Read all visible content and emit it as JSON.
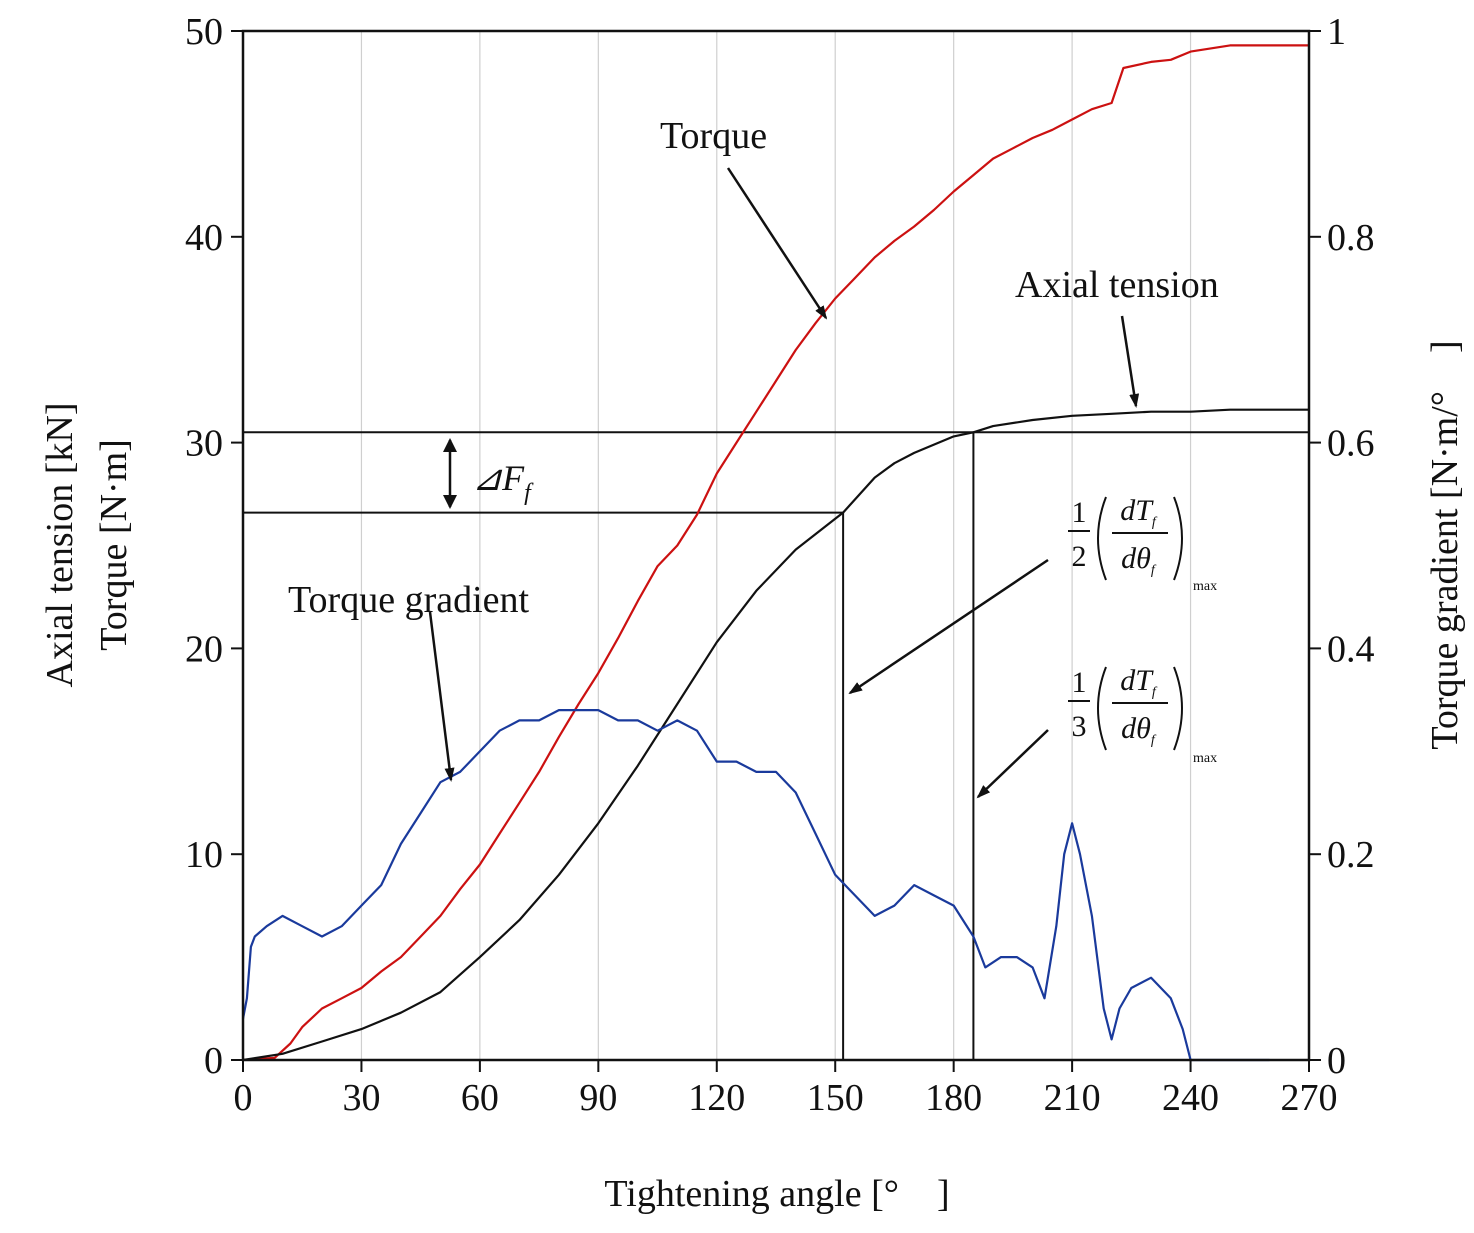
{
  "chart_data": {
    "type": "line",
    "xlabel": "Tightening angle [°　]",
    "ylabel_left_line1": "Axial tension [kN]",
    "ylabel_left_line2": "Torque [N·m]",
    "ylabel_right": "Torque gradient [N·m/°　]",
    "xlim": [
      0,
      270
    ],
    "ylim_left": [
      0,
      50
    ],
    "ylim_right": [
      0,
      1
    ],
    "x_ticks": [
      0,
      30,
      60,
      90,
      120,
      150,
      180,
      210,
      240,
      270
    ],
    "y_ticks_left": [
      0,
      10,
      20,
      30,
      40,
      50
    ],
    "y_ticks_right": [
      "0",
      "0.2",
      "0.4",
      "0.6",
      "0.8",
      "1"
    ],
    "grid": "vertical",
    "series": [
      {
        "name": "Torque",
        "axis": "left",
        "color": "#cc1111",
        "x": [
          0,
          8,
          12,
          15,
          20,
          25,
          30,
          35,
          40,
          45,
          50,
          55,
          60,
          65,
          70,
          75,
          80,
          85,
          90,
          95,
          100,
          105,
          110,
          115,
          120,
          125,
          130,
          135,
          140,
          145,
          150,
          155,
          160,
          165,
          170,
          175,
          180,
          185,
          190,
          195,
          200,
          205,
          210,
          215,
          220,
          223,
          230,
          235,
          240,
          250,
          270
        ],
        "y": [
          0,
          0.1,
          0.8,
          1.6,
          2.5,
          3.0,
          3.5,
          4.3,
          5.0,
          6.0,
          7.0,
          8.3,
          9.5,
          11.0,
          12.5,
          14.0,
          15.7,
          17.3,
          18.8,
          20.5,
          22.3,
          24.0,
          25.0,
          26.5,
          28.5,
          30.0,
          31.5,
          33.0,
          34.5,
          35.8,
          37.0,
          38.0,
          39.0,
          39.8,
          40.5,
          41.3,
          42.2,
          43.0,
          43.8,
          44.3,
          44.8,
          45.2,
          45.7,
          46.2,
          46.5,
          48.2,
          48.5,
          48.6,
          49.0,
          49.3,
          49.3
        ]
      },
      {
        "name": "Axial tension",
        "axis": "left",
        "color": "#111111",
        "x": [
          0,
          10,
          20,
          30,
          40,
          50,
          60,
          70,
          80,
          90,
          100,
          110,
          120,
          130,
          140,
          150,
          152,
          160,
          165,
          170,
          180,
          185,
          190,
          200,
          210,
          220,
          230,
          240,
          250,
          260,
          270
        ],
        "y": [
          0,
          0.3,
          0.9,
          1.5,
          2.3,
          3.3,
          5.0,
          6.8,
          9.0,
          11.5,
          14.3,
          17.3,
          20.3,
          22.8,
          24.8,
          26.3,
          26.6,
          28.3,
          29.0,
          29.5,
          30.3,
          30.5,
          30.8,
          31.1,
          31.3,
          31.4,
          31.5,
          31.5,
          31.6,
          31.6,
          31.6
        ]
      },
      {
        "name": "Torque gradient",
        "axis": "right",
        "color": "#1a3a9c",
        "x": [
          0,
          1,
          2,
          3,
          6,
          10,
          15,
          20,
          25,
          30,
          35,
          40,
          45,
          50,
          55,
          60,
          65,
          70,
          75,
          80,
          85,
          90,
          95,
          100,
          105,
          110,
          115,
          120,
          125,
          130,
          135,
          140,
          145,
          150,
          155,
          160,
          165,
          170,
          175,
          180,
          185,
          188,
          192,
          196,
          200,
          203,
          206,
          208,
          210,
          212,
          215,
          218,
          220,
          222,
          225,
          230,
          235,
          238,
          240,
          245,
          260
        ],
        "y": [
          0.04,
          0.06,
          0.11,
          0.12,
          0.13,
          0.14,
          0.13,
          0.12,
          0.13,
          0.15,
          0.17,
          0.21,
          0.24,
          0.27,
          0.28,
          0.3,
          0.32,
          0.33,
          0.33,
          0.34,
          0.34,
          0.34,
          0.33,
          0.33,
          0.32,
          0.33,
          0.32,
          0.29,
          0.29,
          0.28,
          0.28,
          0.26,
          0.22,
          0.18,
          0.16,
          0.14,
          0.15,
          0.17,
          0.16,
          0.15,
          0.12,
          0.09,
          0.1,
          0.1,
          0.09,
          0.06,
          0.13,
          0.2,
          0.23,
          0.2,
          0.14,
          0.05,
          0.02,
          0.05,
          0.07,
          0.08,
          0.06,
          0.03,
          0.0,
          0.0,
          0.0
        ]
      }
    ],
    "reference_lines": {
      "upper_tension": 30.5,
      "lower_tension": 26.6,
      "angle_half": 152,
      "angle_third": 185
    },
    "annotations": {
      "torque": "Torque",
      "axial_tension": "Axial tension",
      "torque_gradient": "Torque gradient",
      "delta_symbol": "⊿",
      "delta_var": "F",
      "delta_sub": "f",
      "half_num": "1",
      "half_den": "2",
      "third_num": "1",
      "third_den": "3",
      "deriv_num": "dT",
      "deriv_num_sub": "f",
      "deriv_den": "dθ",
      "deriv_den_sub": "f",
      "deriv_max": "max"
    }
  }
}
